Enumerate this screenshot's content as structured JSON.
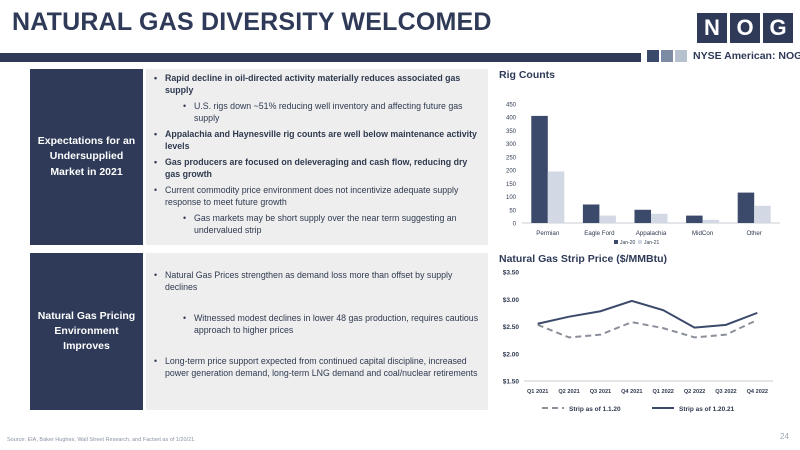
{
  "header": {
    "title": "NATURAL GAS DIVERSITY WELCOMED",
    "logo_letters": [
      "N",
      "O",
      "G"
    ],
    "exchange": "NYSE American: NOG"
  },
  "sections": [
    {
      "label": "Expectations for an Undersupplied Market in 2021",
      "bullets": [
        {
          "text": "Rapid decline in oil-directed activity materially reduces associated gas supply",
          "bold": true,
          "level": 1
        },
        {
          "text": "U.S. rigs down ~51% reducing well inventory and affecting future gas supply",
          "bold": false,
          "level": 2
        },
        {
          "text": "Appalachia and Haynesville rig counts are well below maintenance activity levels",
          "bold": true,
          "level": 1
        },
        {
          "text": "Gas producers are focused on deleveraging and cash flow, reducing dry gas growth",
          "bold": true,
          "level": 1
        },
        {
          "text": "Current commodity price environment does not incentivize adequate supply response to meet future growth",
          "bold": false,
          "level": 1
        },
        {
          "text": "Gas markets may be short supply over the near term suggesting an undervalued strip",
          "bold": false,
          "level": 2
        }
      ]
    },
    {
      "label": "Natural Gas Pricing Environment Improves",
      "bullets": [
        {
          "text": "Natural Gas Prices strengthen as demand loss more than offset by supply declines",
          "bold": false,
          "level": 1
        },
        {
          "text": "Witnessed modest declines in lower 48 gas production, requires cautious approach to higher prices",
          "bold": false,
          "level": 2
        },
        {
          "text": "Long-term price support expected from continued capital discipline, increased power generation demand, long-term LNG demand and coal/nuclear retirements",
          "bold": false,
          "level": 1
        }
      ]
    }
  ],
  "chart_data": [
    {
      "type": "bar",
      "title": "Rig Counts",
      "categories": [
        "Permian",
        "Eagle Ford",
        "Appalachia",
        "MidCon",
        "Other"
      ],
      "series": [
        {
          "name": "Jan-20",
          "values": [
            405,
            70,
            50,
            28,
            115
          ],
          "color": "#3b4a6b"
        },
        {
          "name": "Jan-21",
          "values": [
            195,
            28,
            35,
            12,
            65
          ],
          "color": "#d2d9e4"
        }
      ],
      "ylim": [
        0,
        450
      ],
      "yticks": [
        "0",
        "50",
        "100",
        "150",
        "200",
        "250",
        "300",
        "350",
        "400",
        "450"
      ],
      "ytick_values": [
        0,
        50,
        100,
        150,
        200,
        250,
        300,
        350,
        400,
        450
      ],
      "legend": "bottom",
      "grid": false
    },
    {
      "type": "line",
      "title": "Natural Gas Strip Price ($/MMBtu)",
      "x": [
        "Q1 2021",
        "Q2 2021",
        "Q3 2021",
        "Q4 2021",
        "Q1 2022",
        "Q2 2022",
        "Q3 2022",
        "Q4 2022"
      ],
      "series": [
        {
          "name": "Strip as of 1.1.20",
          "values": [
            2.53,
            2.3,
            2.35,
            2.58,
            2.47,
            2.3,
            2.35,
            2.62
          ],
          "color": "#8a8f99",
          "dash": true
        },
        {
          "name": "Strip as of 1.20.21",
          "values": [
            2.55,
            2.68,
            2.78,
            2.97,
            2.8,
            2.48,
            2.53,
            2.75
          ],
          "color": "#3b4a6b",
          "dash": false
        }
      ],
      "ylim": [
        1.5,
        3.5
      ],
      "yticks": [
        "$1.50",
        "$2.00",
        "$2.50",
        "$3.00",
        "$3.50"
      ],
      "ytick_values": [
        1.5,
        2.0,
        2.5,
        3.0,
        3.5
      ],
      "legend": "bottom",
      "grid": false
    }
  ],
  "footer": {
    "source": "Source: EIA, Baker Hughes, Wall Street Research, and Factset as of 1/20/21.",
    "page": "24"
  }
}
